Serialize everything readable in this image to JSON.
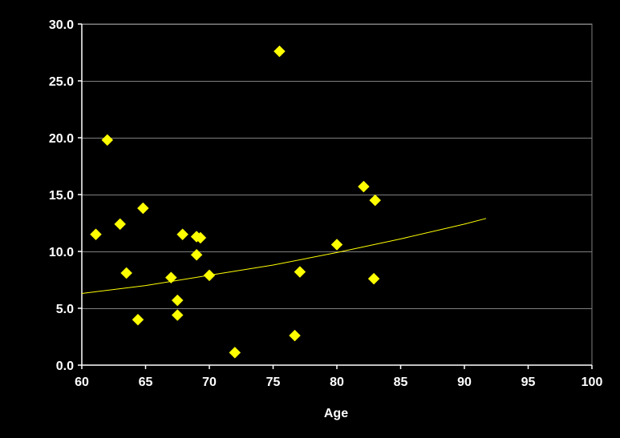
{
  "chart_data": {
    "type": "scatter",
    "title": "",
    "xlabel": "Age",
    "ylabel": "",
    "xlim": [
      60,
      100
    ],
    "ylim": [
      0,
      30
    ],
    "x_ticks": [
      60,
      65,
      70,
      75,
      80,
      85,
      90,
      95,
      100
    ],
    "y_ticks": [
      0.0,
      5.0,
      10.0,
      15.0,
      20.0,
      25.0,
      30.0
    ],
    "x_tick_labels": [
      "60",
      "65",
      "70",
      "75",
      "80",
      "85",
      "90",
      "95",
      "100"
    ],
    "y_tick_labels": [
      "0.0",
      "5.0",
      "10.0",
      "15.0",
      "20.0",
      "25.0",
      "30.0"
    ],
    "grid": "horizontal",
    "legend": "none",
    "series": [
      {
        "marker": "diamond",
        "color": "#ffff00",
        "points": [
          {
            "x": 61.1,
            "y": 11.5
          },
          {
            "x": 62.0,
            "y": 19.8
          },
          {
            "x": 63.0,
            "y": 12.4
          },
          {
            "x": 63.5,
            "y": 8.1
          },
          {
            "x": 64.4,
            "y": 4.0
          },
          {
            "x": 64.8,
            "y": 13.8
          },
          {
            "x": 67.0,
            "y": 7.7
          },
          {
            "x": 67.5,
            "y": 5.7
          },
          {
            "x": 67.5,
            "y": 4.4
          },
          {
            "x": 67.9,
            "y": 11.5
          },
          {
            "x": 69.0,
            "y": 11.3
          },
          {
            "x": 69.0,
            "y": 9.7
          },
          {
            "x": 69.3,
            "y": 11.2
          },
          {
            "x": 70.0,
            "y": 7.9
          },
          {
            "x": 72.0,
            "y": 1.1
          },
          {
            "x": 75.5,
            "y": 27.6
          },
          {
            "x": 76.7,
            "y": 2.6
          },
          {
            "x": 77.1,
            "y": 8.2
          },
          {
            "x": 80.0,
            "y": 10.6
          },
          {
            "x": 82.1,
            "y": 15.7
          },
          {
            "x": 82.9,
            "y": 7.6
          },
          {
            "x": 83.0,
            "y": 14.5
          }
        ]
      }
    ],
    "trendline": {
      "type": "exponential",
      "color": "#ffff00",
      "points": [
        {
          "x": 60.0,
          "y": 6.3
        },
        {
          "x": 65.0,
          "y": 7.0
        },
        {
          "x": 70.0,
          "y": 7.9
        },
        {
          "x": 75.0,
          "y": 8.8
        },
        {
          "x": 80.0,
          "y": 9.9
        },
        {
          "x": 85.0,
          "y": 11.1
        },
        {
          "x": 90.0,
          "y": 12.4
        },
        {
          "x": 91.7,
          "y": 12.9
        }
      ]
    }
  }
}
